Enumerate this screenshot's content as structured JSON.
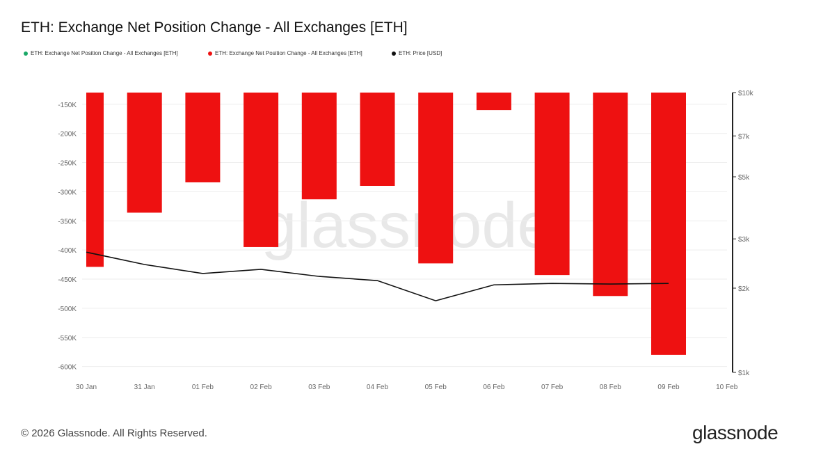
{
  "title": "ETH: Exchange Net Position Change - All Exchanges [ETH]",
  "legend": [
    {
      "label": "ETH: Exchange Net Position Change - All Exchanges [ETH]",
      "color": "#1aa867"
    },
    {
      "label": "ETH: Exchange Net Position Change - All Exchanges [ETH]",
      "color": "#ee1111"
    },
    {
      "label": "ETH: Price [USD]",
      "color": "#111111"
    }
  ],
  "watermark": "glassnode",
  "footer": "© 2026 Glassnode. All Rights Reserved.",
  "logo": "glassnode",
  "chart_data": {
    "type": "bar",
    "title": "ETH: Exchange Net Position Change - All Exchanges [ETH]",
    "x_ticks": [
      "30 Jan",
      "31 Jan",
      "01 Feb",
      "02 Feb",
      "03 Feb",
      "04 Feb",
      "05 Feb",
      "06 Feb",
      "07 Feb",
      "08 Feb",
      "09 Feb",
      "10 Feb"
    ],
    "categories": [
      "30 Jan",
      "31 Jan",
      "01 Feb",
      "02 Feb",
      "03 Feb",
      "04 Feb",
      "05 Feb",
      "06 Feb",
      "07 Feb",
      "08 Feb",
      "09 Feb"
    ],
    "series": [
      {
        "name": "ETH: Exchange Net Position Change - All Exchanges [ETH]",
        "type": "bar",
        "axis": "left",
        "color": "#ee1111",
        "values": [
          -429000,
          -336000,
          -284000,
          -395000,
          -313000,
          -290000,
          -423000,
          -160000,
          -443000,
          -479000,
          -580000
        ]
      },
      {
        "name": "ETH: Price [USD]",
        "type": "line",
        "axis": "right",
        "scale": "log",
        "color": "#111111",
        "values": [
          2690,
          2430,
          2256,
          2335,
          2203,
          2128,
          1803,
          2055,
          2080,
          2069,
          2080
        ]
      }
    ],
    "left_axis": {
      "ylim": [
        -610000,
        -130000
      ],
      "ticks": [
        -150000,
        -200000,
        -250000,
        -300000,
        -350000,
        -400000,
        -450000,
        -500000,
        -550000,
        -600000
      ],
      "tick_labels": [
        "-150K",
        "-200K",
        "-250K",
        "-300K",
        "-350K",
        "-400K",
        "-450K",
        "-500K",
        "-550K",
        "-600K"
      ]
    },
    "right_axis": {
      "scale": "log",
      "ylim": [
        1000,
        10000
      ],
      "ticks": [
        10000,
        7000,
        5000,
        3000,
        2000,
        1000
      ],
      "tick_labels": [
        "$10k",
        "$7k",
        "$5k",
        "$3k",
        "$2k",
        "$1k"
      ]
    },
    "grid": true,
    "legend_position": "top-left"
  }
}
